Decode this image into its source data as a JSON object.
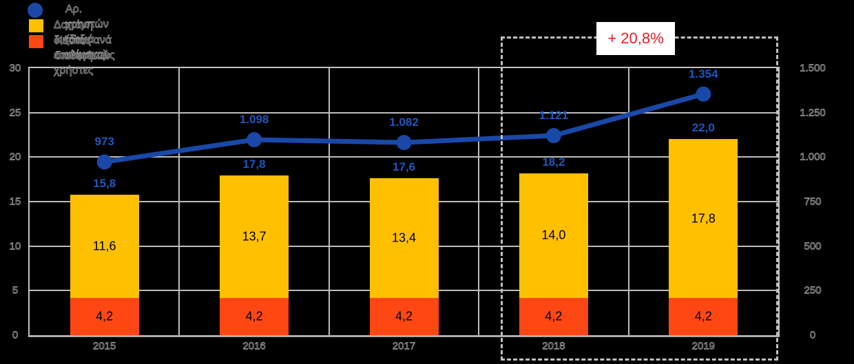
{
  "chart_data": {
    "type": "bar",
    "subtype": "stacked-bars-with-line-overlay",
    "categories": [
      "2015",
      "2016",
      "2017",
      "2018",
      "2019"
    ],
    "series": [
      {
        "name": "Κόστος διαθεσίμων",
        "type": "bar",
        "stack": true,
        "color": "#ff4713",
        "values": [
          4.2,
          4.2,
          4.2,
          4.2,
          4.2
        ],
        "labels": [
          "4,2",
          "4,2",
          "4,2",
          "4,2",
          "4,2"
        ]
      },
      {
        "name": "Δαπάνη δικτύου ανά εσωτερικούς χρήστες",
        "type": "bar",
        "stack": true,
        "color": "#ffc000",
        "values": [
          11.6,
          13.7,
          13.4,
          14.0,
          17.8
        ],
        "labels": [
          "11,6",
          "13,7",
          "13,4",
          "14,0",
          "17,8"
        ]
      },
      {
        "name": "Αρ. χρηστών (δεξιά κλίμακα)",
        "type": "line",
        "axis": "right",
        "color": "#1a48a8",
        "marker_color": "#1a48a8",
        "label_color": "#2155be",
        "values": [
          973,
          1098,
          1082,
          1121,
          1354
        ],
        "labels": [
          "973",
          "1.098",
          "1.082",
          "1.121",
          "1.354"
        ]
      }
    ],
    "stack_totals": {
      "values": [
        15.8,
        17.8,
        17.6,
        18.2,
        22.0
      ],
      "labels": [
        "15,8",
        "17,8",
        "17,6",
        "18,2",
        "22,0"
      ],
      "label_color": "#2155be"
    },
    "left_axis": {
      "min": 0,
      "max": 30,
      "step": 5,
      "ticks": [
        "30",
        "25",
        "20",
        "15",
        "10",
        "5",
        "0"
      ]
    },
    "right_axis": {
      "min": 0,
      "max": 1500,
      "step": 250,
      "ticks": [
        "1.500",
        "1.250",
        "1.000",
        "750",
        "500",
        "250",
        "0"
      ]
    },
    "grid": true,
    "legend_position": "top-left",
    "annotation": {
      "text": "+ 20,8%",
      "color": "#ec1c24",
      "highlight_years": [
        "2018",
        "2019"
      ]
    }
  },
  "legend": {
    "items": [
      {
        "label": "Αρ. χρηστών (δεξιά κλίμακα)",
        "swatch": "circle",
        "color": "#1a48a8"
      },
      {
        "label": "Δαπάνη δικτύου ανά εσωτερικούς χρήστες",
        "swatch": "square",
        "color": "#ffc000"
      },
      {
        "label": "Κόστος διαθεσίμων",
        "swatch": "square",
        "color": "#ff4713"
      }
    ]
  }
}
